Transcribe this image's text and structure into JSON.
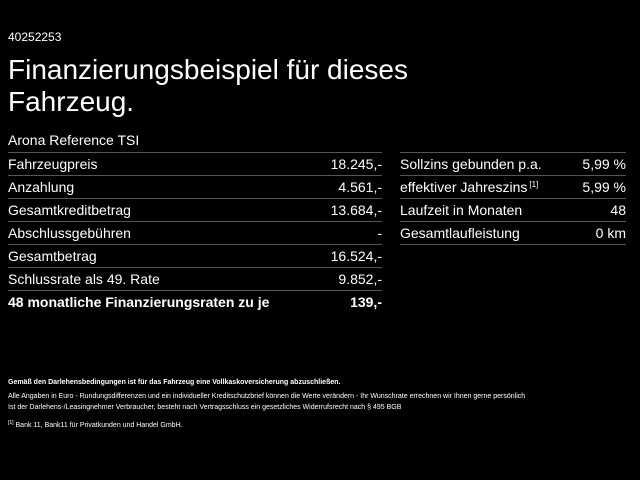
{
  "header": {
    "id": "40252253",
    "title_line1": "Finanzierungsbeispiel für dieses",
    "title_line2": "Fahrzeug.",
    "model": "Arona Reference TSI"
  },
  "left_table": {
    "rows": [
      [
        "Fahrzeugpreis",
        "18.245,-"
      ],
      [
        "Anzahlung",
        "4.561,-"
      ],
      [
        "Gesamtkreditbetrag",
        "13.684,-"
      ],
      [
        "Abschlussgebühren",
        "-"
      ],
      [
        "Gesamtbetrag",
        "16.524,-"
      ],
      [
        "Schlussrate als 49. Rate",
        "9.852,-"
      ],
      [
        "48 monatliche Finanzierungsraten zu je",
        "139,-"
      ]
    ]
  },
  "right_table": {
    "rows": [
      [
        "Sollzins gebunden p.a.",
        "5,99 %"
      ],
      [
        "effektiver Jahreszins",
        "5,99 %"
      ],
      [
        "Laufzeit in Monaten",
        "48"
      ],
      [
        "Gesamtlaufleistung",
        "0 km"
      ]
    ],
    "footnote_mark": "[1]"
  },
  "footnotes": {
    "insurance": "Gemäß den Darlehensbedingungen ist für das Fahrzeug eine Vollkaskoversicherung abzuschließen.",
    "disclaimer_line1": "Alle Angaben in Euro - Rundungsdifferenzen und ein individueller Kreditschutzbrief können die Werte verändern - Ihr Wunschrate errechnen wir Ihnen gerne persönlich",
    "disclaimer_line2": "Ist der Darlehens-/Leasingnehmer Verbraucher, besteht nach Vertragsschluss ein gesetzliches Widerrufsrecht nach § 495 BGB",
    "bank_mark": "[1]",
    "bank": "Bank 11, Bank11 für Privatkunden und Handel GmbH."
  }
}
